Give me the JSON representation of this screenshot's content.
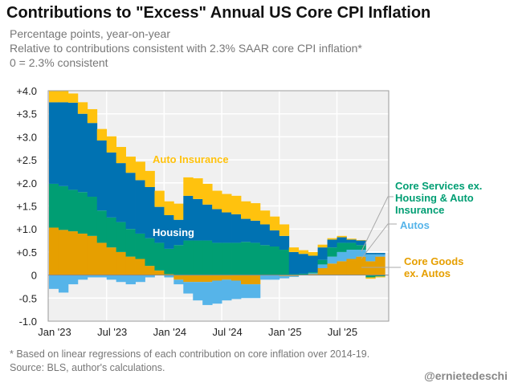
{
  "chart_data": {
    "type": "bar",
    "stacked": true,
    "title": "Contributions to \"Excess\" Annual US Core CPI Inflation",
    "subtitles": [
      "Percentage points, year-on-year",
      "Relative to contributions consistent with 2.3% SAAR core CPI inflation*",
      "0 = 2.3% consistent"
    ],
    "categories": [
      "Jan '23",
      "Feb '23",
      "Mar '23",
      "Apr '23",
      "May '23",
      "Jun '23",
      "Jul '23",
      "Aug '23",
      "Sep '23",
      "Oct '23",
      "Nov '23",
      "Dec '23",
      "Jan '24",
      "Feb '24",
      "Mar '24",
      "Apr '24",
      "May '24",
      "Jun '24",
      "Jul '24",
      "Aug '24",
      "Sep '24",
      "Oct '24",
      "Nov '24",
      "Dec '24",
      "Jan '25",
      "Feb '25",
      "Mar '25",
      "Apr '25",
      "May '25",
      "Jun '25",
      "Jul '25",
      "Aug '25",
      "Sep '25",
      "Oct '25",
      "Nov '25"
    ],
    "series": [
      {
        "name": "Core Goods ex. Autos",
        "color": "#E69F00",
        "values": [
          1.03,
          0.98,
          0.95,
          0.9,
          0.85,
          0.7,
          0.6,
          0.5,
          0.4,
          0.35,
          0.2,
          0.1,
          0.02,
          -0.1,
          -0.15,
          -0.15,
          -0.15,
          -0.12,
          -0.1,
          -0.12,
          -0.2,
          -0.2,
          0,
          0,
          -0.02,
          -0.02,
          0,
          0.02,
          0.15,
          0.25,
          0.3,
          0.35,
          0.4,
          0.3,
          0.4
        ]
      },
      {
        "name": "Autos",
        "color": "#56B4E9",
        "values": [
          -0.3,
          -0.38,
          -0.2,
          -0.1,
          -0.05,
          -0.05,
          -0.1,
          -0.15,
          -0.2,
          -0.15,
          -0.05,
          0,
          -0.05,
          -0.1,
          -0.25,
          -0.4,
          -0.5,
          -0.5,
          -0.45,
          -0.4,
          -0.3,
          -0.3,
          -0.1,
          -0.1,
          -0.05,
          -0.02,
          0.01,
          0.02,
          0.08,
          0.15,
          0.2,
          0.2,
          0.15,
          0.15,
          0.05
        ]
      },
      {
        "name": "Core Services ex. Housing & Auto Insurance",
        "color": "#009E73",
        "values": [
          0.95,
          0.95,
          0.9,
          0.9,
          0.85,
          0.7,
          0.65,
          0.65,
          0.6,
          0.55,
          0.6,
          0.6,
          0.55,
          0.65,
          0.75,
          0.75,
          0.75,
          0.7,
          0.7,
          0.7,
          0.72,
          0.7,
          0.65,
          0.62,
          0.55,
          0.02,
          0.02,
          0.02,
          0.1,
          0.2,
          0.2,
          0.15,
          0.1,
          -0.05,
          -0.03
        ]
      },
      {
        "name": "Housing",
        "color": "#0072B2",
        "values": [
          1.77,
          1.82,
          1.89,
          1.7,
          1.6,
          1.52,
          1.41,
          1.28,
          1.22,
          1.16,
          1.11,
          0.78,
          0.73,
          0.55,
          0.97,
          0.9,
          0.78,
          0.73,
          0.66,
          0.62,
          0.5,
          0.48,
          0.45,
          0.35,
          0.3,
          0.48,
          0.43,
          0.36,
          0.27,
          0.17,
          0.12,
          0.07,
          0.1,
          0.03,
          0.03
        ]
      },
      {
        "name": "Auto Insurance",
        "color": "#FFC20E",
        "values": [
          0.25,
          0.25,
          0.2,
          0.25,
          0.3,
          0.25,
          0.35,
          0.35,
          0.35,
          0.4,
          0.35,
          0.35,
          0.3,
          0.35,
          0.4,
          0.45,
          0.45,
          0.4,
          0.4,
          0.4,
          0.38,
          0.38,
          0.3,
          0.3,
          0.25,
          0.1,
          0.08,
          0.08,
          0.06,
          0.03,
          0.03,
          0.02,
          0.01,
          -0.03,
          -0.02
        ]
      }
    ],
    "yticks": [
      "+4.0",
      "+3.5",
      "+3.0",
      "+2.5",
      "+2.0",
      "+1.5",
      "+1.0",
      "+0.5",
      "0",
      "-0.5",
      "-1.0"
    ],
    "ytick_values": [
      4,
      3.5,
      3,
      2.5,
      2,
      1.5,
      1,
      0.5,
      0,
      -0.5,
      -1
    ],
    "xticks": [
      "Jan '23",
      "Jul '23",
      "Jan '24",
      "Jul '24",
      "Jan '25",
      "Jul '25"
    ],
    "xtick_index": [
      0,
      6,
      12,
      18,
      24,
      30
    ],
    "ylim": [
      -1.0,
      4.0
    ],
    "grid": true,
    "annotations": {
      "auto_insurance": "Auto Insurance",
      "housing": "Housing",
      "core_services": [
        "Core Services ex.",
        "Housing & Auto",
        "Insurance"
      ],
      "autos": "Autos",
      "core_goods": [
        "Core Goods",
        "ex. Autos"
      ]
    }
  },
  "footnotes": [
    "* Based on linear regressions of each contribution on core inflation over 2014-19.",
    "Source: BLS, author's calculations."
  ],
  "handle": "@ernietedeschi"
}
